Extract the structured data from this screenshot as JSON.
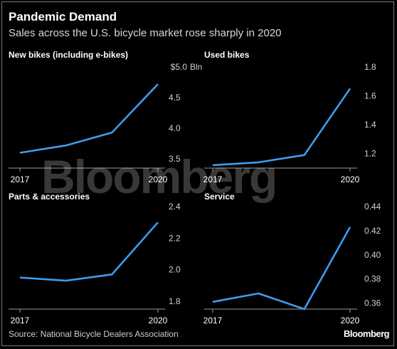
{
  "title": "Pandemic Demand",
  "subtitle": "Sales across the U.S. bicycle market rose sharply in 2020",
  "source": "Source: National Bicycle Dealers Association",
  "brand": "Bloomberg",
  "colors": {
    "line": "#3d9cf0",
    "background": "#000000",
    "axis": "#9a9a9a"
  },
  "chart_data": [
    {
      "type": "line",
      "title": "New bikes (including e-bikes)",
      "unit": "Bln",
      "x_labels": [
        "2017",
        "2020"
      ],
      "x": [
        2017,
        2018,
        2019,
        2020
      ],
      "values": [
        3.6,
        3.72,
        3.93,
        4.72
      ],
      "yticks": [
        "3.5",
        "4.0",
        "4.5",
        "$5.0"
      ],
      "ylim": [
        3.35,
        5.0
      ]
    },
    {
      "type": "line",
      "title": "Used bikes",
      "x_labels": [
        "2017",
        "2020"
      ],
      "x": [
        2017,
        2018,
        2019,
        2020
      ],
      "values": [
        1.12,
        1.14,
        1.19,
        1.65
      ],
      "yticks": [
        "1.2",
        "1.4",
        "1.6",
        "1.8"
      ],
      "ylim": [
        1.1,
        1.8
      ]
    },
    {
      "type": "line",
      "title": "Parts & accessories",
      "x_labels": [
        "2017",
        "2020"
      ],
      "x": [
        2017,
        2018,
        2019,
        2020
      ],
      "values": [
        1.95,
        1.93,
        1.97,
        2.3
      ],
      "yticks": [
        "1.8",
        "2.0",
        "2.2",
        "2.4"
      ],
      "ylim": [
        1.75,
        2.4
      ]
    },
    {
      "type": "line",
      "title": "Service",
      "x_labels": [
        "2017",
        "2020"
      ],
      "x": [
        2017,
        2018,
        2019,
        2020
      ],
      "values": [
        0.361,
        0.368,
        0.355,
        0.423
      ],
      "yticks": [
        "0.36",
        "0.38",
        "0.40",
        "0.42",
        "0.44"
      ],
      "ylim": [
        0.355,
        0.44
      ]
    }
  ]
}
